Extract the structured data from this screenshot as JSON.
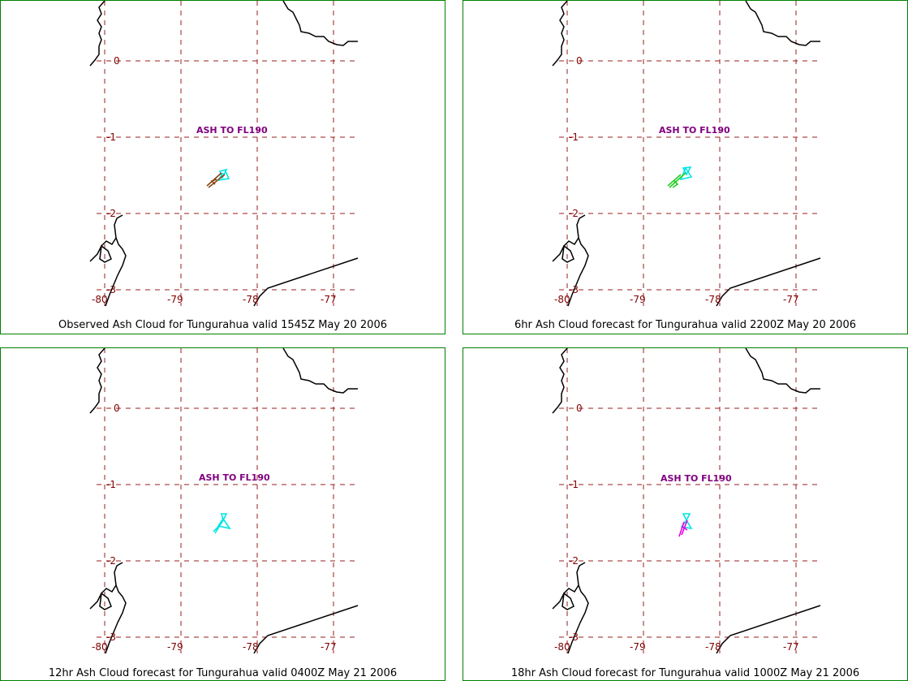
{
  "grid": {
    "lon_ticks": [
      "-80",
      "-79",
      "-78",
      "-77"
    ],
    "lat_ticks": [
      "0",
      "-1",
      "-2",
      "-3"
    ]
  },
  "panels": [
    {
      "caption": "Observed Ash Cloud for Tungurahua valid 1545Z May 20 2006",
      "label": "ASH TO FL190",
      "cloud_colors": [
        "#00e5e5",
        "#8b4513"
      ],
      "label_shift": 0
    },
    {
      "caption": "6hr Ash Cloud forecast for Tungurahua valid 2200Z May 20 2006",
      "label": "ASH TO FL190",
      "cloud_colors": [
        "#00e5e5",
        "#22cc22"
      ],
      "label_shift": 0
    },
    {
      "caption": "12hr Ash Cloud forecast for Tungurahua valid 0400Z May 21 2006",
      "label": "ASH TO FL190",
      "cloud_colors": [
        "#00e5e5"
      ],
      "label_shift": 0
    },
    {
      "caption": "18hr Ash Cloud forecast for Tungurahua valid 1000Z May 21 2006",
      "label": "ASH TO FL190",
      "cloud_colors": [
        "#00e5e5",
        "#e000e0"
      ],
      "label_shift": 0
    }
  ]
}
